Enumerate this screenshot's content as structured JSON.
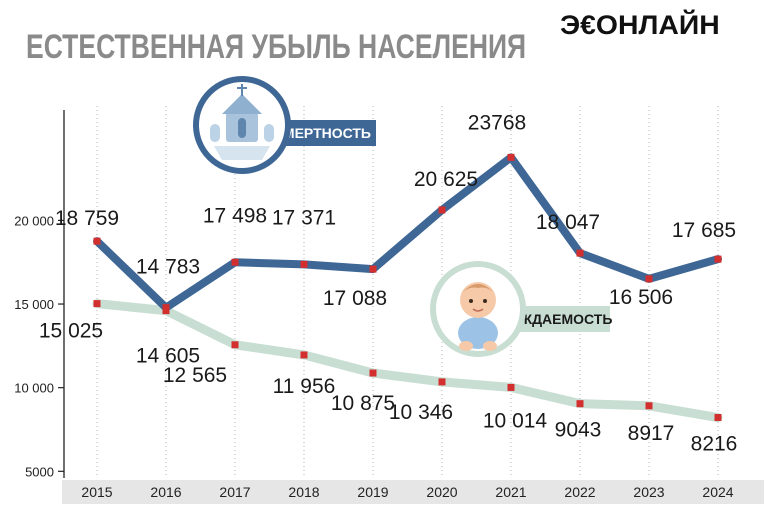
{
  "header": {
    "title": "ЕСТЕСТВЕННАЯ УБЫЛЬ НАСЕЛЕНИЯ",
    "logo": "Э€ОНЛАЙН"
  },
  "badges": {
    "deaths": "СМЕРТНОСТЬ",
    "births": "РОЖДАЕМОСТЬ"
  },
  "colors": {
    "deaths_line": "#3f6796",
    "births_line": "#c8ded3",
    "marker": "#d32f2f",
    "axis_band": "#e6e6e6",
    "title": "#8a8a8a"
  },
  "chart_data": {
    "type": "line",
    "categories": [
      "2015",
      "2016",
      "2017",
      "2018",
      "2019",
      "2020",
      "2021",
      "2022",
      "2023",
      "2024"
    ],
    "series": [
      {
        "name": "СМЕРТНОСТЬ",
        "values": [
          18759,
          14783,
          17498,
          17371,
          17088,
          20625,
          23768,
          18047,
          16506,
          17685
        ],
        "labels": [
          "18 759",
          "14 783",
          "17 498",
          "17 371",
          "17 088",
          "20 625",
          "23768",
          "18 047",
          "16 506",
          "17 685"
        ]
      },
      {
        "name": "РОЖДАЕМОСТЬ",
        "values": [
          15025,
          14605,
          12565,
          11956,
          10875,
          10346,
          10014,
          9043,
          8917,
          8216
        ],
        "labels": [
          "15 025",
          "14 605",
          "12 565",
          "11 956",
          "10 875",
          "10 346",
          "10 014",
          "9043",
          "8917",
          "8216"
        ]
      }
    ],
    "yticks": [
      {
        "value": 5000,
        "label": "5000"
      },
      {
        "value": 10000,
        "label": "10 000"
      },
      {
        "value": 15000,
        "label": "15 000"
      },
      {
        "value": 20000,
        "label": "20 000"
      }
    ],
    "ylim": [
      4600,
      26600
    ],
    "grid": "vertical dotted"
  }
}
